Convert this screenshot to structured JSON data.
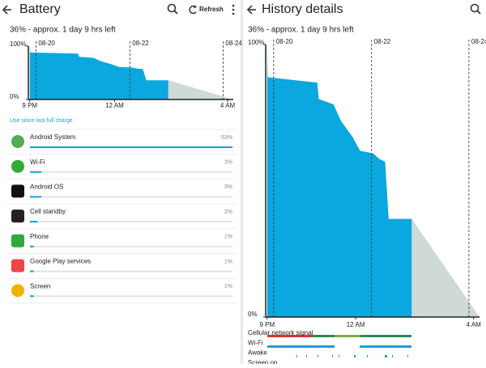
{
  "left": {
    "title": "Battery",
    "refresh": "Refresh",
    "section": "Use since last full charge",
    "apps": [
      {
        "name": "Android System",
        "value": 53,
        "value_label": "53%"
      },
      {
        "name": "Wi-Fi",
        "value": 3,
        "value_label": "3%"
      },
      {
        "name": "Android OS",
        "value": 3,
        "value_label": "3%"
      },
      {
        "name": "Cell standby",
        "value": 2,
        "value_label": "2%"
      },
      {
        "name": "Phone",
        "value": 1,
        "value_label": "1%"
      },
      {
        "name": "Google Play services",
        "value": 1,
        "value_label": "1%"
      },
      {
        "name": "Screen",
        "value": 1,
        "value_label": "1%"
      }
    ]
  },
  "right": {
    "title": "History details",
    "signals": [
      "Cellular network signal",
      "Wi-Fi",
      "Awake",
      "Screen on"
    ]
  },
  "status": "36% - approx. 1 day 9 hrs left",
  "chart_data": {
    "type": "area",
    "x": [
      0,
      0.02,
      1.7,
      1.75,
      2.25,
      2.5,
      2.9,
      3.15,
      3.6,
      3.8,
      4.0,
      4.12,
      4.9
    ],
    "values": [
      100,
      88,
      86,
      80,
      78,
      72,
      66,
      61,
      60,
      58,
      57,
      36,
      36
    ],
    "color": "#0aa8de",
    "projection_color": "#cfd9d7",
    "xlim": [
      -0.05,
      7.2
    ],
    "ylim": [
      0,
      100
    ],
    "xticks": [
      {
        "value": 0,
        "label": "9 PM"
      },
      {
        "value": 3,
        "label": "12 AM"
      },
      {
        "value": 7,
        "label": "4 AM"
      }
    ],
    "yticks": [
      {
        "value": 0,
        "label": "0%"
      },
      {
        "value": 100,
        "label": "100%"
      }
    ],
    "date_lines": [
      {
        "value": 0.22,
        "label": "08-20"
      },
      {
        "value": 3.54,
        "label": "08-22"
      },
      {
        "value": 6.84,
        "label": "08-24"
      }
    ]
  }
}
